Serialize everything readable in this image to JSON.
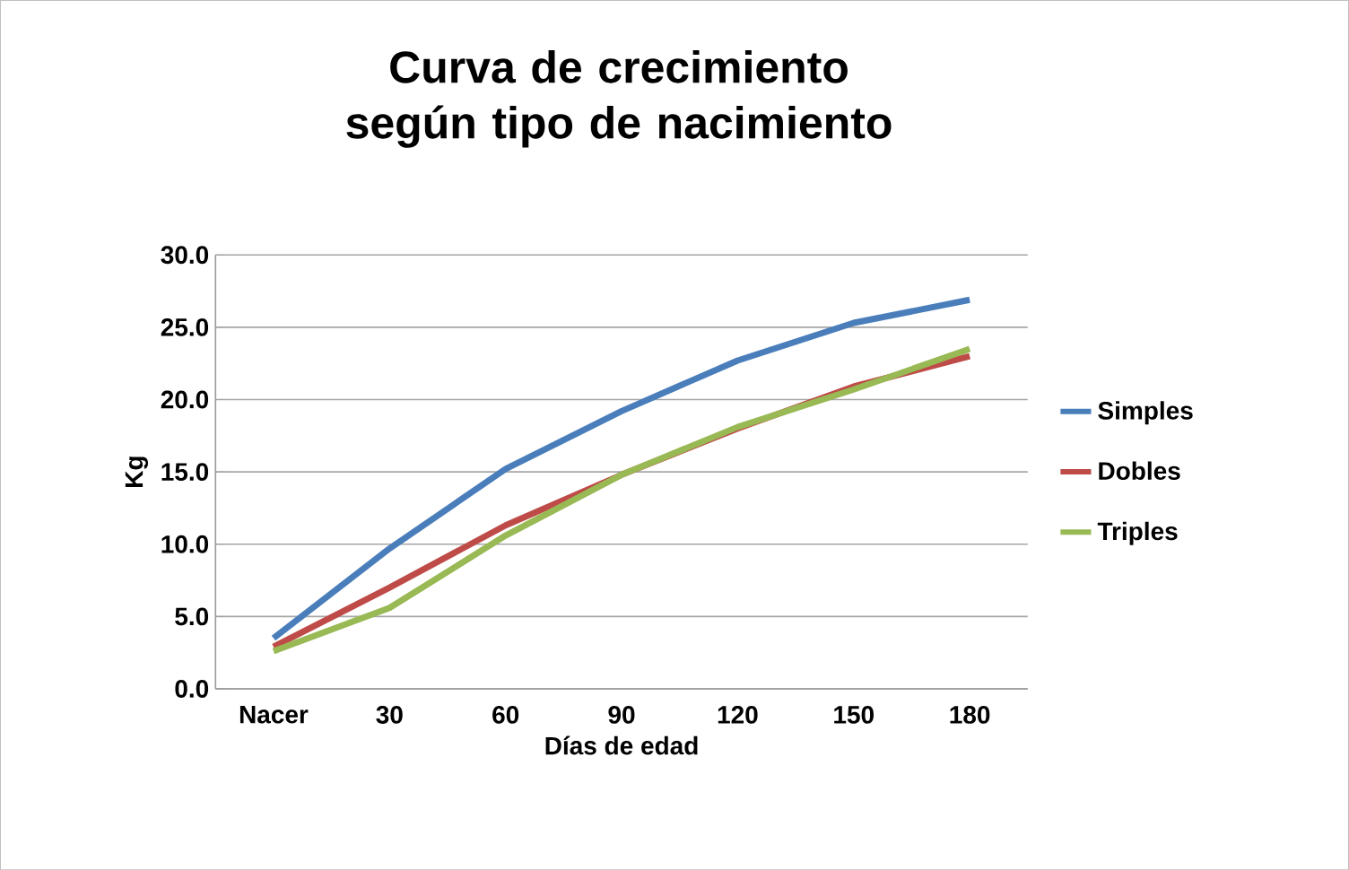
{
  "chart_data": {
    "type": "line",
    "title": "Curva de crecimiento según tipo de nacimiento",
    "xlabel": "Días de edad",
    "ylabel": "Kg",
    "categories": [
      "Nacer",
      "30",
      "60",
      "90",
      "120",
      "150",
      "180"
    ],
    "series": [
      {
        "name": "Simples",
        "color": "#4a7ebb",
        "values": [
          3.5,
          9.7,
          15.2,
          19.2,
          22.7,
          25.3,
          26.9
        ]
      },
      {
        "name": "Dobles",
        "color": "#be4b48",
        "values": [
          2.9,
          7.0,
          11.3,
          14.8,
          18.0,
          20.9,
          23.0
        ]
      },
      {
        "name": "Triples",
        "color": "#98b954",
        "values": [
          2.6,
          5.6,
          10.6,
          14.8,
          18.1,
          20.7,
          23.5
        ]
      }
    ],
    "ylim": [
      0,
      30
    ],
    "yticks": [
      {
        "value": 0,
        "label": "0.0"
      },
      {
        "value": 5,
        "label": "5.0"
      },
      {
        "value": 10,
        "label": "10.0"
      },
      {
        "value": 15,
        "label": "15.0"
      },
      {
        "value": 20,
        "label": "20.0"
      },
      {
        "value": 25,
        "label": "25.0"
      },
      {
        "value": 30,
        "label": "30.0"
      }
    ],
    "grid": "y",
    "legend": "right",
    "marker": "none",
    "line_style": "solid"
  }
}
